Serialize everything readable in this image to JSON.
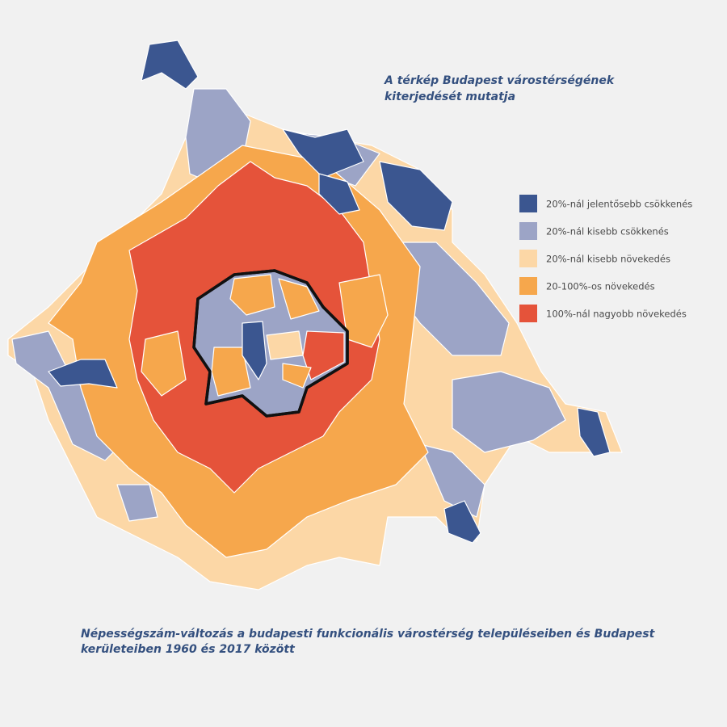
{
  "header": {
    "title_lines": [
      "A térkép Budapest várostérségének",
      "kiterjedését mutatja"
    ]
  },
  "legend": {
    "items": [
      {
        "label": "20%-nál jelentősebb csökkenés",
        "color": "#3b5690"
      },
      {
        "label": "20%-nál kisebb csökkenés",
        "color": "#9ca4c6"
      },
      {
        "label": "20%-nál kisebb növekedés",
        "color": "#fcd7a6"
      },
      {
        "label": "20-100%-os növekedés",
        "color": "#f6a74c"
      },
      {
        "label": "100%-nál nagyobb növekedés",
        "color": "#e5533a"
      }
    ]
  },
  "caption": {
    "lines": [
      "Népességszám-változás a budapesti funkcionális várostérség településeiben és Budapest",
      "kerületeiben 1960 és 2017 között"
    ]
  }
}
